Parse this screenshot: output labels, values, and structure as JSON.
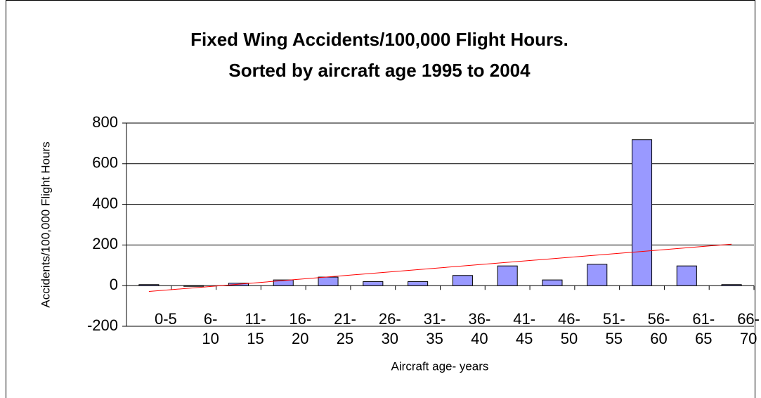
{
  "chart_data": {
    "type": "bar",
    "title": "Fixed Wing Accidents/100,000 Flight Hours.",
    "subtitle": "Sorted by aircraft age 1995 to 2004",
    "x_label": "Aircraft age- years",
    "y_label": "Accidents/100,000 Flight Hours",
    "categories": [
      "0-5",
      "6-10",
      "11-15",
      "16-20",
      "21-25",
      "26-30",
      "31-35",
      "36-40",
      "41-45",
      "46-50",
      "51-55",
      "56-60",
      "61-65",
      "66-70"
    ],
    "values": [
      5,
      0,
      12,
      28,
      42,
      20,
      20,
      50,
      97,
      28,
      105,
      718,
      97,
      5
    ],
    "color": "#9999ff",
    "ylim": [
      -200,
      800
    ],
    "yticks": [
      -200,
      0,
      200,
      400,
      600,
      800
    ],
    "grid": true,
    "trendline": {
      "type": "linear",
      "color": "#ff0000"
    }
  }
}
